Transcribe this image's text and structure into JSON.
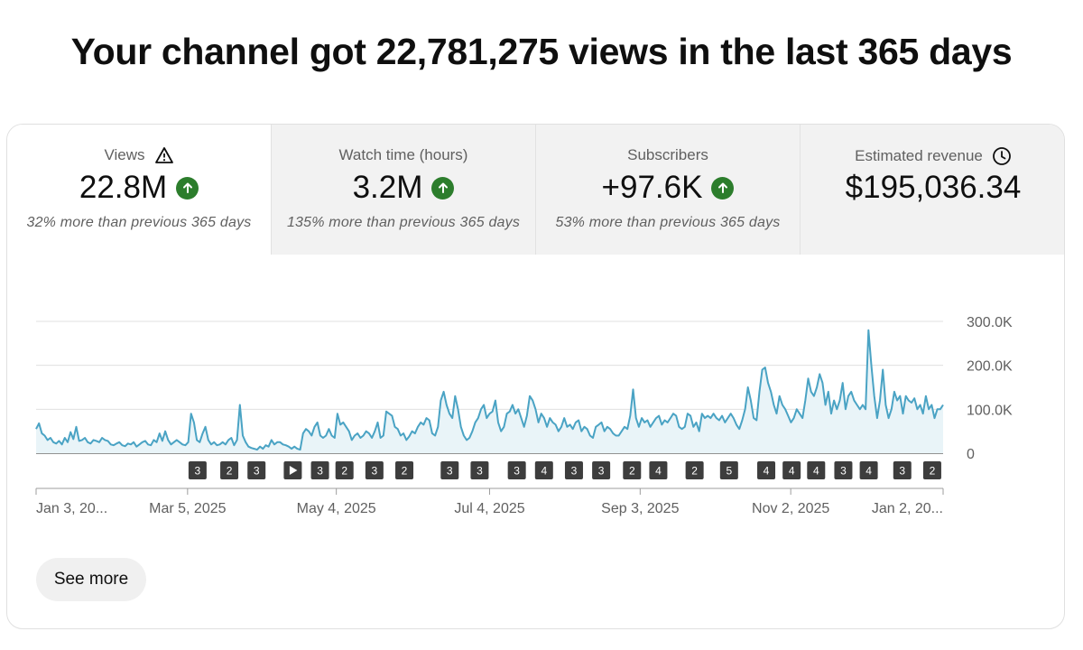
{
  "headline": "Your channel got 22,781,275 views in the last 365 days",
  "metrics": [
    {
      "label": "Views",
      "value": "22.8M",
      "compare": "32% more than previous 365 days",
      "trend": "up",
      "icon": "warning-icon"
    },
    {
      "label": "Watch time (hours)",
      "value": "3.2M",
      "compare": "135% more than previous 365 days",
      "trend": "up"
    },
    {
      "label": "Subscribers",
      "value": "+97.6K",
      "compare": "53% more than previous 365 days",
      "trend": "up"
    },
    {
      "label": "Estimated revenue",
      "value": "$195,036.34",
      "compare": "",
      "icon": "clock-icon"
    }
  ],
  "colors": {
    "line": "#4aa3c4",
    "fill": "#e9f4f8",
    "trend_up": "#2c7d2c",
    "marker": "#3d3d3d"
  },
  "see_more": "See more",
  "chart_data": {
    "type": "area",
    "x_ticks": [
      "Jan 3, 20...",
      "Mar 5, 2025",
      "May 4, 2025",
      "Jul 4, 2025",
      "Sep 3, 2025",
      "Nov 2, 2025",
      "Jan 2, 20..."
    ],
    "y_ticks": [
      "300.0K",
      "200.0K",
      "100.0K",
      "0"
    ],
    "ylim": [
      0,
      300000
    ],
    "grid": true,
    "series": [
      {
        "values": [
          55000,
          68000,
          45000,
          40000,
          30000,
          35000,
          25000,
          22000,
          28000,
          20000,
          35000,
          25000,
          48000,
          32000,
          60000,
          28000,
          30000,
          35000,
          25000,
          22000,
          30000,
          28000,
          25000,
          35000,
          30000,
          28000,
          20000,
          18000,
          22000,
          25000,
          18000,
          16000,
          22000,
          20000,
          25000,
          15000,
          20000,
          25000,
          28000,
          20000,
          18000,
          30000,
          25000,
          45000,
          28000,
          50000,
          30000,
          20000,
          25000,
          30000,
          25000,
          20000,
          18000,
          25000,
          90000,
          70000,
          30000,
          25000,
          45000,
          60000,
          30000,
          20000,
          25000,
          18000,
          20000,
          25000,
          20000,
          30000,
          35000,
          18000,
          30000,
          110000,
          40000,
          25000,
          15000,
          12000,
          10000,
          8000,
          15000,
          10000,
          18000,
          15000,
          30000,
          20000,
          25000,
          25000,
          20000,
          18000,
          15000,
          10000,
          15000,
          10000,
          8000,
          45000,
          55000,
          50000,
          40000,
          60000,
          70000,
          40000,
          35000,
          40000,
          55000,
          40000,
          35000,
          90000,
          65000,
          70000,
          60000,
          50000,
          30000,
          40000,
          45000,
          35000,
          40000,
          50000,
          45000,
          35000,
          50000,
          70000,
          35000,
          40000,
          95000,
          90000,
          85000,
          60000,
          55000,
          40000,
          45000,
          30000,
          38000,
          50000,
          45000,
          60000,
          70000,
          65000,
          80000,
          75000,
          45000,
          40000,
          60000,
          120000,
          140000,
          110000,
          90000,
          80000,
          130000,
          100000,
          60000,
          40000,
          30000,
          35000,
          50000,
          70000,
          80000,
          100000,
          110000,
          80000,
          90000,
          95000,
          120000,
          70000,
          50000,
          60000,
          90000,
          95000,
          110000,
          90000,
          100000,
          80000,
          60000,
          85000,
          130000,
          120000,
          100000,
          70000,
          90000,
          80000,
          60000,
          80000,
          70000,
          65000,
          50000,
          60000,
          80000,
          60000,
          65000,
          55000,
          70000,
          75000,
          50000,
          60000,
          55000,
          40000,
          35000,
          60000,
          65000,
          70000,
          50000,
          60000,
          55000,
          45000,
          40000,
          40000,
          50000,
          60000,
          55000,
          85000,
          145000,
          80000,
          60000,
          80000,
          70000,
          75000,
          60000,
          70000,
          80000,
          85000,
          65000,
          75000,
          70000,
          80000,
          90000,
          85000,
          60000,
          55000,
          60000,
          90000,
          85000,
          60000,
          70000,
          50000,
          90000,
          80000,
          85000,
          80000,
          90000,
          80000,
          75000,
          85000,
          70000,
          80000,
          90000,
          80000,
          65000,
          55000,
          75000,
          100000,
          150000,
          120000,
          80000,
          75000,
          140000,
          190000,
          195000,
          160000,
          140000,
          110000,
          90000,
          130000,
          110000,
          100000,
          85000,
          70000,
          80000,
          100000,
          90000,
          80000,
          120000,
          170000,
          140000,
          130000,
          150000,
          180000,
          160000,
          110000,
          140000,
          90000,
          120000,
          100000,
          120000,
          160000,
          100000,
          130000,
          140000,
          120000,
          110000,
          100000,
          110000,
          100000,
          280000,
          200000,
          130000,
          80000,
          120000,
          190000,
          110000,
          80000,
          100000,
          140000,
          120000,
          130000,
          90000,
          130000,
          120000,
          115000,
          125000,
          100000,
          110000,
          90000,
          130000,
          100000,
          110000,
          80000,
          100000,
          100000,
          110000
        ]
      }
    ],
    "markers": [
      {
        "label": "3",
        "pos": 0.178
      },
      {
        "label": "2",
        "pos": 0.213
      },
      {
        "label": "3",
        "pos": 0.243
      },
      {
        "label": "",
        "pos": 0.283,
        "icon": "play-icon"
      },
      {
        "label": "3",
        "pos": 0.313
      },
      {
        "label": "2",
        "pos": 0.34
      },
      {
        "label": "3",
        "pos": 0.373
      },
      {
        "label": "2",
        "pos": 0.406
      },
      {
        "label": "3",
        "pos": 0.456
      },
      {
        "label": "3",
        "pos": 0.489
      },
      {
        "label": "3",
        "pos": 0.53
      },
      {
        "label": "4",
        "pos": 0.56
      },
      {
        "label": "3",
        "pos": 0.593
      },
      {
        "label": "3",
        "pos": 0.623
      },
      {
        "label": "2",
        "pos": 0.657
      },
      {
        "label": "4",
        "pos": 0.686
      },
      {
        "label": "2",
        "pos": 0.726
      },
      {
        "label": "5",
        "pos": 0.764
      },
      {
        "label": "4",
        "pos": 0.805
      },
      {
        "label": "4",
        "pos": 0.833
      },
      {
        "label": "4",
        "pos": 0.86
      },
      {
        "label": "3",
        "pos": 0.89
      },
      {
        "label": "4",
        "pos": 0.918
      },
      {
        "label": "3",
        "pos": 0.955
      },
      {
        "label": "2",
        "pos": 0.988
      }
    ]
  }
}
